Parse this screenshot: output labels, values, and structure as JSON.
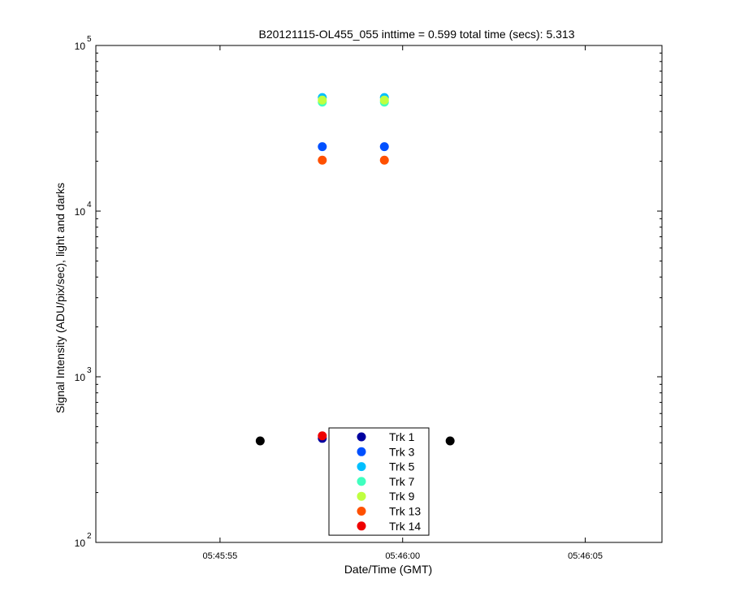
{
  "chart_data": {
    "type": "scatter",
    "title": "B20121115-OL455_055 inttime = 0.599 total time (secs): 5.313",
    "xlabel": "Date/Time (GMT)",
    "ylabel": "Signal Intensity (ADU/pix/sec), light and darks",
    "y_scale": "log",
    "ylim": [
      100,
      100000
    ],
    "xlim": [
      "05:45:51.6",
      "05:46:07.1"
    ],
    "x_ticks": [
      "05:45:55",
      "05:46:00",
      "05:46:05"
    ],
    "y_ticks": [
      {
        "base": "10",
        "exp": "2"
      },
      {
        "base": "10",
        "exp": "3"
      },
      {
        "base": "10",
        "exp": "4"
      },
      {
        "base": "10",
        "exp": "5"
      }
    ],
    "legend_position": "bottom-center",
    "series": [
      {
        "name": "Trk 1",
        "color": "#00009f",
        "x": [
          "05:45:57.8",
          "05:45:59.5"
        ],
        "y": [
          425,
          425
        ]
      },
      {
        "name": "Trk 3",
        "color": "#0050ff",
        "x": [
          "05:45:57.8",
          "05:45:59.5"
        ],
        "y": [
          24500,
          24500
        ]
      },
      {
        "name": "Trk 5",
        "color": "#00bfff",
        "x": [
          "05:45:57.8",
          "05:45:59.5"
        ],
        "y": [
          48500,
          48500
        ]
      },
      {
        "name": "Trk 7",
        "color": "#40ffbf",
        "x": [
          "05:45:57.8",
          "05:45:59.5"
        ],
        "y": [
          45500,
          45500
        ]
      },
      {
        "name": "Trk 9",
        "color": "#bfff40",
        "x": [
          "05:45:57.8",
          "05:45:59.5"
        ],
        "y": [
          46800,
          46800
        ]
      },
      {
        "name": "Trk 13",
        "color": "#ff5000",
        "x": [
          "05:45:57.8",
          "05:45:59.5"
        ],
        "y": [
          20300,
          20300
        ]
      },
      {
        "name": "Trk 14",
        "color": "#ef0000",
        "x": [
          "05:45:57.8"
        ],
        "y": [
          440
        ]
      }
    ],
    "dark_points": {
      "color": "#000000",
      "x": [
        "05:45:56.1",
        "05:46:01.3"
      ],
      "y": [
        410,
        410
      ]
    }
  }
}
